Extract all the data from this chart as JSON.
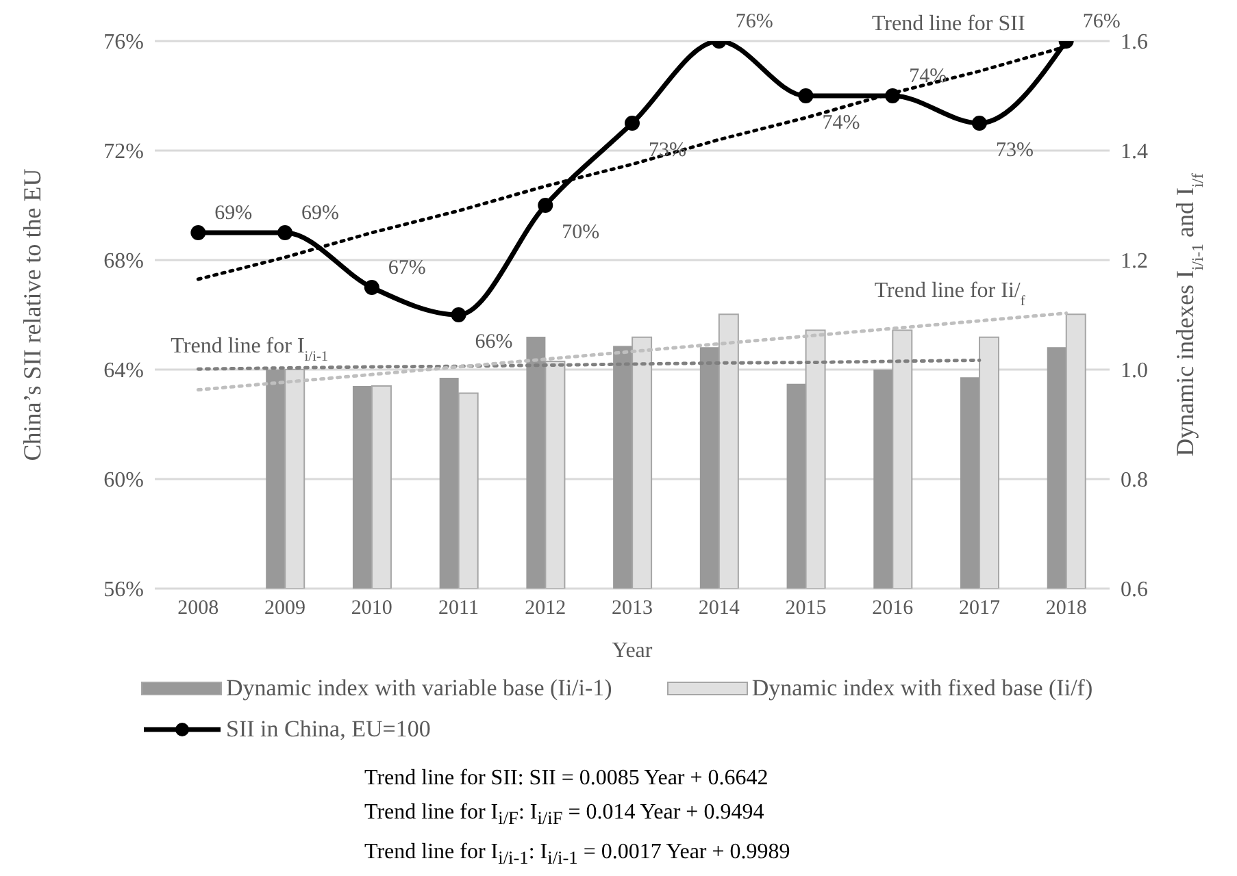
{
  "chart_data": {
    "type": "bar",
    "xlabel": "Year",
    "ylabel": "China’s SII relative to the EU",
    "y2label": "Dynamic indexes I$_{i/i-1}$ and I$_{i/f}$",
    "categories": [
      "2008",
      "2009",
      "2010",
      "2011",
      "2012",
      "2013",
      "2014",
      "2015",
      "2016",
      "2017",
      "2018"
    ],
    "series": [
      {
        "name": "Dynamic index with variable base (Ii/i-1)",
        "axis": "y2",
        "color": "#999999",
        "values": [
          null,
          1.0,
          0.97,
          0.985,
          1.06,
          1.043,
          1.041,
          0.974,
          1.0,
          0.986,
          1.041
        ]
      },
      {
        "name": "Dynamic index with fixed base (Ii/f)",
        "axis": "y2",
        "color": "#e0e0e0",
        "values": [
          null,
          1.0,
          0.97,
          0.957,
          1.015,
          1.059,
          1.101,
          1.072,
          1.072,
          1.059,
          1.101
        ]
      },
      {
        "name": "SII in China, EU=100",
        "type": "line",
        "color": "#000000",
        "marker": "circle",
        "line_style": "solid",
        "values": [
          69,
          69,
          67,
          66,
          70,
          73,
          76,
          74,
          74,
          73,
          76
        ],
        "value_labels": [
          "69%",
          "69%",
          "67%",
          "66%",
          "70%",
          "73%",
          "76%",
          "74%",
          "74%",
          "73%",
          "76%"
        ]
      },
      {
        "name": "Trend line for SII",
        "type": "line",
        "color": "#000000",
        "marker": "none",
        "line_style": "dotted",
        "values": [
          67.3,
          68.1,
          69.0,
          69.8,
          70.7,
          71.5,
          72.4,
          73.2,
          74.1,
          74.9,
          75.8
        ]
      },
      {
        "name": "Trend line for I$_{i/i-1}$",
        "type": "line",
        "axis": "y2",
        "color": "#7f7f7f",
        "marker": "none",
        "line_style": "dotted",
        "values": [
          1.001,
          1.003,
          1.005,
          1.006,
          1.008,
          1.01,
          1.012,
          1.013,
          1.015,
          1.017,
          null
        ]
      },
      {
        "name": "Trend line for Ii/$_{f}$",
        "type": "line",
        "axis": "y2",
        "color": "#bfbfbf",
        "marker": "none",
        "line_style": "dotted",
        "values": [
          0.963,
          0.977,
          0.991,
          1.005,
          1.019,
          1.033,
          1.047,
          1.061,
          1.075,
          1.089,
          1.103
        ]
      }
    ],
    "ylim": [
      56,
      76
    ],
    "yticks": [
      {
        "value": 56,
        "label": "56%"
      },
      {
        "value": 60,
        "label": "60%"
      },
      {
        "value": 64,
        "label": "64%"
      },
      {
        "value": 68,
        "label": "68%"
      },
      {
        "value": 72,
        "label": "72%"
      },
      {
        "value": 76,
        "label": "76%"
      }
    ],
    "y2lim": [
      0.6,
      1.6
    ],
    "y2ticks": [
      0.6,
      0.8,
      {
        "value": 1,
        "label": "1.0"
      },
      1.2,
      1.4,
      1.6
    ],
    "grid": "y",
    "legend": "bottom",
    "annotations": [
      "Trend line for SII: SII = 0.0085 Year + 0.6642",
      "Trend line for I$_{i/F}$: I$_{i/iF}$ = 0.014 Year + 0.9494",
      "Trend line for I$_{i/i-1}$: I$_{i/i-1}$ = 0.0017 Year + 0.9989"
    ]
  }
}
